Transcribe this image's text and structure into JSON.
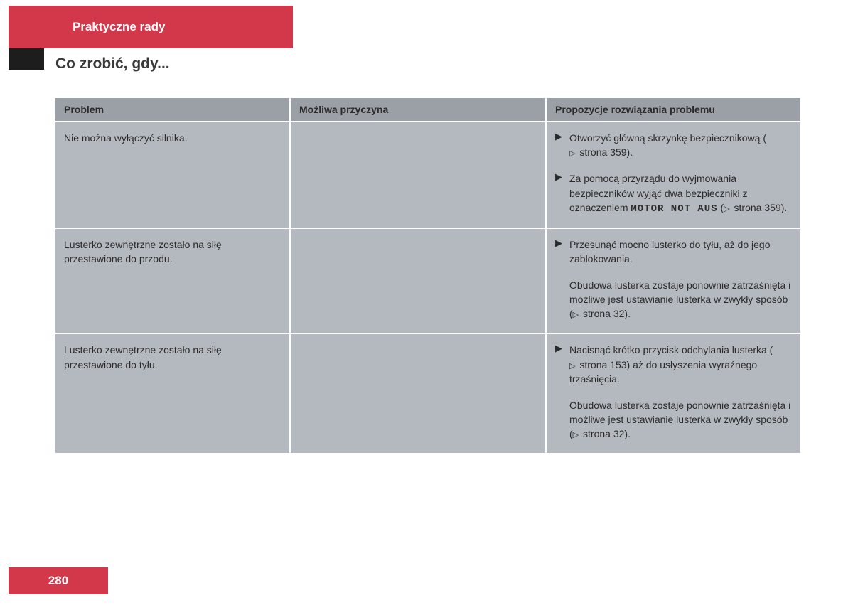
{
  "colors": {
    "red": "#d3384a",
    "redText": "#ffffff",
    "black": "#1d1d1d",
    "subtitle": "#3a3a3a",
    "headerBg": "#9aa0a6",
    "headerText": "#2b2b2b",
    "cellBg": "#b4b9bf",
    "cellText": "#2b2b2b",
    "pageNumText": "#ffffff"
  },
  "header": {
    "tabTitle": "Praktyczne rady",
    "subtitle": "Co zrobić, gdy..."
  },
  "table": {
    "columns": {
      "problem": "Problem",
      "cause": "Możliwa przyczyna",
      "solution": "Propozycje rozwiązania problemu"
    },
    "rows": [
      {
        "problem": "Nie można wyłączyć silnika.",
        "cause": "",
        "solutions": [
          {
            "bullet": true,
            "pre": "Otworzyć główną skrzynkę bezpiecznikową (",
            "ref": "strona 359",
            "post": ")."
          },
          {
            "bullet": true,
            "pre": "Za pomocą przyrządu do wyjmowania bezpieczników wyjąć dwa bezpieczniki z oznaczeniem ",
            "mono": "MOTOR NOT AUS",
            "mid": " (",
            "ref": "strona 359",
            "post": ")."
          }
        ]
      },
      {
        "problem": "Lusterko zewnętrzne zostało na siłę przestawione do przodu.",
        "cause": "",
        "solutions": [
          {
            "bullet": true,
            "pre": "Przesunąć mocno lusterko do tyłu, aż do jego zablokowania."
          },
          {
            "bullet": false,
            "pre": "Obudowa lusterka zostaje ponownie zatrzaśnięta i możliwe jest ustawianie lusterka w zwykły sposób (",
            "ref": "strona 32",
            "post": ")."
          }
        ]
      },
      {
        "problem": "Lusterko zewnętrzne zostało na siłę przestawione do tyłu.",
        "cause": "",
        "solutions": [
          {
            "bullet": true,
            "pre": "Nacisnąć krótko przycisk odchylania lusterka (",
            "ref": "strona 153",
            "post": ") aż do usłyszenia wyraźnego trzaśnięcia."
          },
          {
            "bullet": false,
            "pre": "Obudowa lusterka zostaje ponownie zatrzaśnięta i możliwe jest ustawianie lusterka w zwykły sposób (",
            "ref": "strona 32",
            "post": ")."
          }
        ]
      }
    ]
  },
  "pageNumber": "280"
}
